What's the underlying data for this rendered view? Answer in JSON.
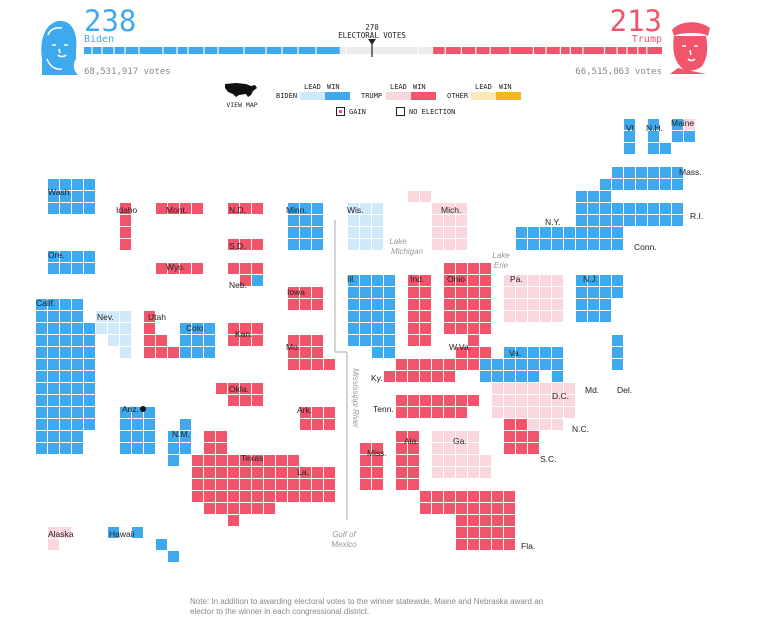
{
  "header": {
    "biden": {
      "ev": "238",
      "name": "Biden",
      "votes": "68,531,917 votes"
    },
    "trump": {
      "ev": "213",
      "name": "Trump",
      "votes": "66,515,063 votes"
    },
    "threshold": {
      "value": "270",
      "label": "ELECTORAL VOTES"
    }
  },
  "legend": {
    "view_map": "VIEW MAP",
    "lead": "LEAD",
    "win": "WIN",
    "biden": "BIDEN",
    "trump": "TRUMP",
    "other": "OTHER",
    "gain": "GAIN",
    "no_election": "NO ELECTION"
  },
  "colors": {
    "biden_win": "#3FA9EE",
    "biden_lead": "#CFE9F9",
    "trump_win": "#F0556B",
    "trump_lead": "#FAD7DC",
    "other_lead": "#FDE9B8",
    "other_win": "#F5B521",
    "undecided": "#FAD7DC"
  },
  "map_labels": {
    "wash": "Wash.",
    "ore": "Ore.",
    "calif": "Calif.",
    "idaho": "Idaho",
    "nev": "Nev.",
    "mont": "Mont.",
    "wyo": "Wyo.",
    "utah": "Utah",
    "colo": "Colo.",
    "ariz": "Ariz.",
    "nm": "N.M.",
    "nd": "N.D.",
    "sd": "S.D.",
    "neb": "Neb.",
    "kan": "Kan.",
    "okla": "Okla.",
    "texas": "Texas",
    "minn": "Minn.",
    "iowa": "Iowa",
    "mo": "Mo.",
    "ark": "Ark.",
    "la": "La.",
    "wis": "Wis.",
    "ill": "Ill.",
    "mich": "Mich.",
    "ind": "Ind.",
    "ohio": "Ohio",
    "ky": "Ky.",
    "tenn": "Tenn.",
    "miss": "Miss.",
    "ala": "Ala.",
    "ga": "Ga.",
    "fla": "Fla.",
    "sc": "S.C.",
    "nc": "N.C.",
    "va": "Va.",
    "wva": "W.Va.",
    "pa": "Pa.",
    "ny": "N.Y.",
    "nj": "N.J.",
    "md": "Md.",
    "del": "Del.",
    "dc": "D.C.",
    "vt": "Vt.",
    "nh": "N.H.",
    "maine": "Maine",
    "mass": "Mass.",
    "ri": "R.I.",
    "conn": "Conn.",
    "alaska": "Alaska",
    "hawaii": "Hawaii"
  },
  "geo_labels": {
    "lake_michigan": [
      "Lake",
      "Michigan"
    ],
    "lake_erie": [
      "Lake",
      "Erie"
    ],
    "mississippi": "Mississippi River",
    "gulf": [
      "Gulf of",
      "Mexico"
    ]
  },
  "note": {
    "line1": "Note: In addition to awarding electoral votes to the winner statewide, Maine and Nebraska award an",
    "line2": "elector to the winner in each congressional district."
  },
  "chart_data": {
    "type": "cartogram",
    "title": "",
    "electoral_votes_to_win": 270,
    "totals": [
      {
        "name": "Biden",
        "electoral_votes": 238,
        "popular_votes": 68531917
      },
      {
        "name": "Trump",
        "electoral_votes": 213,
        "popular_votes": 66515063
      }
    ],
    "states": [
      {
        "label": "Wash.",
        "ev": 12,
        "status": "biden_win"
      },
      {
        "label": "Ore.",
        "ev": 7,
        "status": "biden_win"
      },
      {
        "label": "Calif.",
        "ev": 55,
        "status": "biden_win"
      },
      {
        "label": "Idaho",
        "ev": 4,
        "status": "trump_win"
      },
      {
        "label": "Nev.",
        "ev": 6,
        "status": "biden_lead"
      },
      {
        "label": "Mont.",
        "ev": 3,
        "status": "trump_win"
      },
      {
        "label": "Wyo.",
        "ev": 3,
        "status": "trump_win"
      },
      {
        "label": "Utah",
        "ev": 6,
        "status": "trump_win"
      },
      {
        "label": "Colo.",
        "ev": 9,
        "status": "biden_win"
      },
      {
        "label": "Ariz.",
        "ev": 11,
        "status": "biden_win",
        "gain": true
      },
      {
        "label": "N.M.",
        "ev": 5,
        "status": "biden_win"
      },
      {
        "label": "N.D.",
        "ev": 3,
        "status": "trump_win"
      },
      {
        "label": "S.D.",
        "ev": 3,
        "status": "trump_win"
      },
      {
        "label": "Neb.",
        "ev": 5,
        "status": "trump_win",
        "split": "1 biden_win"
      },
      {
        "label": "Kan.",
        "ev": 6,
        "status": "trump_win"
      },
      {
        "label": "Okla.",
        "ev": 7,
        "status": "trump_win"
      },
      {
        "label": "Texas",
        "ev": 38,
        "status": "trump_win"
      },
      {
        "label": "Minn.",
        "ev": 10,
        "status": "biden_win"
      },
      {
        "label": "Iowa",
        "ev": 6,
        "status": "trump_win"
      },
      {
        "label": "Mo.",
        "ev": 10,
        "status": "trump_win"
      },
      {
        "label": "Ark.",
        "ev": 6,
        "status": "trump_win"
      },
      {
        "label": "La.",
        "ev": 8,
        "status": "trump_win"
      },
      {
        "label": "Wis.",
        "ev": 10,
        "status": "biden_lead"
      },
      {
        "label": "Ill.",
        "ev": 20,
        "status": "biden_win"
      },
      {
        "label": "Mich.",
        "ev": 16,
        "status": "trump_lead"
      },
      {
        "label": "Ind.",
        "ev": 11,
        "status": "trump_win"
      },
      {
        "label": "Ohio",
        "ev": 18,
        "status": "trump_win"
      },
      {
        "label": "Ky.",
        "ev": 8,
        "status": "trump_win"
      },
      {
        "label": "Tenn.",
        "ev": 11,
        "status": "trump_win"
      },
      {
        "label": "Miss.",
        "ev": 6,
        "status": "trump_win"
      },
      {
        "label": "Ala.",
        "ev": 9,
        "status": "trump_win"
      },
      {
        "label": "Ga.",
        "ev": 16,
        "status": "trump_lead"
      },
      {
        "label": "Fla.",
        "ev": 29,
        "status": "trump_win"
      },
      {
        "label": "S.C.",
        "ev": 9,
        "status": "trump_win"
      },
      {
        "label": "N.C.",
        "ev": 15,
        "status": "trump_lead"
      },
      {
        "label": "Va.",
        "ev": 13,
        "status": "biden_win"
      },
      {
        "label": "W.Va.",
        "ev": 5,
        "status": "trump_win"
      },
      {
        "label": "Pa.",
        "ev": 20,
        "status": "trump_lead"
      },
      {
        "label": "N.Y.",
        "ev": 29,
        "status": "biden_win"
      },
      {
        "label": "N.J.",
        "ev": 14,
        "status": "biden_win"
      },
      {
        "label": "Md.",
        "ev": 10,
        "status": "biden_win"
      },
      {
        "label": "Del.",
        "ev": 3,
        "status": "biden_win"
      },
      {
        "label": "D.C.",
        "ev": 3,
        "status": "biden_win"
      },
      {
        "label": "Vt.",
        "ev": 3,
        "status": "biden_win"
      },
      {
        "label": "N.H.",
        "ev": 4,
        "status": "biden_win"
      },
      {
        "label": "Maine",
        "ev": 4,
        "status": "biden_win",
        "split": "1 undecided"
      },
      {
        "label": "Mass.",
        "ev": 11,
        "status": "biden_win"
      },
      {
        "label": "R.I.",
        "ev": 4,
        "status": "biden_win"
      },
      {
        "label": "Conn.",
        "ev": 7,
        "status": "biden_win"
      },
      {
        "label": "Alaska",
        "ev": 3,
        "status": "trump_lead"
      },
      {
        "label": "Hawaii",
        "ev": 4,
        "status": "biden_win"
      }
    ]
  }
}
